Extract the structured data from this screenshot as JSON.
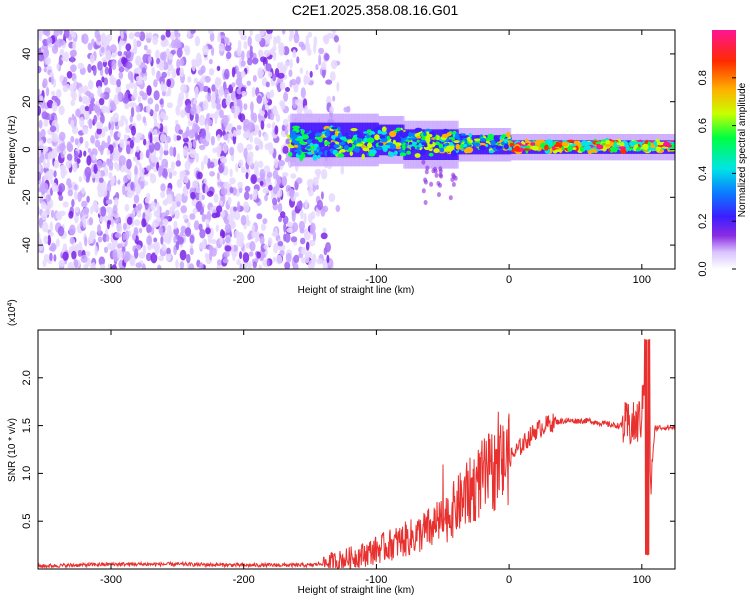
{
  "title": "C2E1.2025.358.08.16.G01",
  "chart_data": [
    {
      "type": "heatmap",
      "xlabel": "Height of straight line (km)",
      "ylabel": "Frequency (Hz)",
      "xlim": [
        -355,
        125
      ],
      "ylim": [
        -50,
        50
      ],
      "xticks": [
        -300,
        -200,
        -100,
        0,
        100
      ],
      "yticks": [
        -40,
        -20,
        0,
        20,
        40
      ],
      "colorbar": {
        "label": "Normalized spectral amplitude",
        "range": [
          0,
          1
        ],
        "ticks": [
          0.0,
          0.2,
          0.4,
          0.6,
          0.8
        ],
        "colormap": [
          "#ffffff",
          "#d9c4ff",
          "#8a2be2",
          "#3b1eff",
          "#0b7dff",
          "#00e5e5",
          "#00ff40",
          "#c8ff00",
          "#ffb000",
          "#ff2a00",
          "#ff1493"
        ]
      },
      "regions": [
        {
          "x_range": [
            -355,
            -150
          ],
          "y_range": [
            -50,
            50
          ],
          "amplitude": [
            0.05,
            0.2
          ],
          "pattern": "scattered noise"
        },
        {
          "x_range": [
            -165,
            125
          ],
          "center_frequency": 3,
          "amplitude": [
            0.2,
            1.0
          ],
          "pattern": "narrow band converging toward 0 Hz"
        }
      ]
    },
    {
      "type": "line",
      "xlabel": "Height of straight line (km)",
      "ylabel": "SNR (10 * v/v)",
      "scale_label": "(x10",
      "scale_exponent": "4",
      "xlim": [
        -355,
        125
      ],
      "ylim": [
        0,
        2.5
      ],
      "xticks": [
        -300,
        -200,
        -100,
        0,
        100
      ],
      "yticks": [
        0.5,
        1.0,
        1.5,
        2.0
      ],
      "color": "#e8312f",
      "series": [
        {
          "x": [
            -355,
            -300,
            -250,
            -200,
            -150,
            -130,
            -110,
            -90,
            -70,
            -50,
            -40,
            -30,
            -20,
            -10,
            0,
            10,
            20,
            30,
            40,
            60,
            80,
            95,
            100,
            103,
            105,
            110,
            125
          ],
          "y": [
            0.03,
            0.05,
            0.05,
            0.04,
            0.04,
            0.08,
            0.15,
            0.25,
            0.35,
            0.5,
            0.65,
            0.8,
            0.95,
            1.05,
            1.15,
            1.3,
            1.45,
            1.52,
            1.55,
            1.55,
            1.5,
            1.5,
            1.6,
            2.3,
            0.6,
            1.48,
            1.48
          ]
        }
      ]
    }
  ]
}
